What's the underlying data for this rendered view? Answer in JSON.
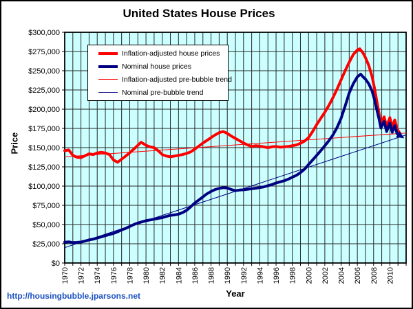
{
  "page": {
    "background": "#ffffff",
    "frame_border": "#000000"
  },
  "chart": {
    "title": "United States House Prices",
    "source_link": "http://housingbubble.jparsons.net",
    "colors": {
      "plot_bg": "#CCFFFF",
      "gridline": "#262626",
      "axis": "#000000",
      "inflation_adjusted": "#FF0000",
      "nominal": "#000082",
      "link": "#1a50c0",
      "text": "#000000"
    },
    "y_axis": {
      "label": "Price",
      "min": 0,
      "max": 300000,
      "step": 25000,
      "tick_labels": [
        "$0",
        "$25,000",
        "$50,000",
        "$75,000",
        "$100,000",
        "$125,000",
        "$150,000",
        "$175,000",
        "$200,000",
        "$225,000",
        "$250,000",
        "$275,000",
        "$300,000"
      ]
    },
    "x_axis": {
      "label": "Year",
      "min": 1970,
      "max": 2012,
      "grid_step_years": 1,
      "tick_years": [
        1970,
        1972,
        1974,
        1976,
        1978,
        1980,
        1982,
        1984,
        1986,
        1988,
        1990,
        1992,
        1994,
        1996,
        1998,
        2000,
        2002,
        2004,
        2006,
        2008,
        2010
      ],
      "tick_labels": [
        "1970",
        "1972",
        "1974",
        "1976",
        "1978",
        "1980",
        "1982",
        "1984",
        "1986",
        "1988",
        "1990",
        "1992",
        "1994",
        "1996",
        "1998",
        "2000",
        "2002",
        "2004",
        "2006",
        "2008",
        "2010"
      ]
    },
    "legend": {
      "items": [
        {
          "label": "Inflation-adjusted house prices",
          "color": "#FF0000",
          "weight": "thick"
        },
        {
          "label": "Nominal house prices",
          "color": "#000082",
          "weight": "thick"
        },
        {
          "label": "Inflation-adjusted pre-bubble trend",
          "color": "#FF0000",
          "weight": "thin"
        },
        {
          "label": "Nominal pre-bubble trend",
          "color": "#000082",
          "weight": "thin"
        }
      ]
    }
  },
  "chart_data": {
    "type": "line",
    "title": "United States House Prices",
    "xlabel": "Year",
    "ylabel": "Price",
    "xlim": [
      1970,
      2012
    ],
    "ylim": [
      0,
      300000
    ],
    "grid": true,
    "legend_position": "upper-left-inside",
    "series": [
      {
        "name": "Inflation-adjusted house prices",
        "color": "#FF0000",
        "width": 4,
        "points": [
          [
            1970,
            146000
          ],
          [
            1970.5,
            147000
          ],
          [
            1971,
            140000
          ],
          [
            1971.5,
            137500
          ],
          [
            1972,
            137000
          ],
          [
            1972.5,
            139500
          ],
          [
            1973,
            142000
          ],
          [
            1973.5,
            141000
          ],
          [
            1974,
            143000
          ],
          [
            1974.5,
            144000
          ],
          [
            1975,
            143000
          ],
          [
            1975.5,
            141000
          ],
          [
            1976,
            134000
          ],
          [
            1976.5,
            131000
          ],
          [
            1977,
            135000
          ],
          [
            1977.5,
            139000
          ],
          [
            1978,
            143500
          ],
          [
            1978.5,
            148000
          ],
          [
            1979,
            153000
          ],
          [
            1979.4,
            157000
          ],
          [
            1980,
            153000
          ],
          [
            1980.5,
            151000
          ],
          [
            1981,
            150000
          ],
          [
            1981.5,
            146000
          ],
          [
            1982,
            141000
          ],
          [
            1982.5,
            139000
          ],
          [
            1983,
            138000
          ],
          [
            1983.5,
            139000
          ],
          [
            1984,
            140000
          ],
          [
            1984.5,
            141000
          ],
          [
            1985,
            142500
          ],
          [
            1985.5,
            144500
          ],
          [
            1986,
            148000
          ],
          [
            1986.5,
            152000
          ],
          [
            1987,
            156000
          ],
          [
            1987.5,
            159500
          ],
          [
            1988,
            163000
          ],
          [
            1988.5,
            166500
          ],
          [
            1989,
            169500
          ],
          [
            1989.5,
            171000
          ],
          [
            1990,
            168500
          ],
          [
            1990.5,
            165000
          ],
          [
            1991,
            162000
          ],
          [
            1991.5,
            159000
          ],
          [
            1992,
            156000
          ],
          [
            1992.5,
            153500
          ],
          [
            1993,
            151500
          ],
          [
            1993.5,
            152500
          ],
          [
            1994,
            152000
          ],
          [
            1994.5,
            151000
          ],
          [
            1995,
            150000
          ],
          [
            1995.5,
            151000
          ],
          [
            1996,
            151500
          ],
          [
            1996.5,
            150500
          ],
          [
            1997,
            151000
          ],
          [
            1997.5,
            151500
          ],
          [
            1998,
            152500
          ],
          [
            1998.5,
            153500
          ],
          [
            1999,
            155500
          ],
          [
            1999.5,
            158500
          ],
          [
            2000,
            163000
          ],
          [
            2000.5,
            171000
          ],
          [
            2001,
            180000
          ],
          [
            2001.5,
            188000
          ],
          [
            2002,
            196000
          ],
          [
            2002.5,
            205000
          ],
          [
            2003,
            215000
          ],
          [
            2003.5,
            226000
          ],
          [
            2004,
            238000
          ],
          [
            2004.5,
            250000
          ],
          [
            2005,
            261000
          ],
          [
            2005.5,
            271000
          ],
          [
            2006,
            277000
          ],
          [
            2006.3,
            278500
          ],
          [
            2006.7,
            273000
          ],
          [
            2007,
            267000
          ],
          [
            2007.4,
            257000
          ],
          [
            2007.8,
            243000
          ],
          [
            2008.1,
            228000
          ],
          [
            2008.4,
            210000
          ],
          [
            2008.7,
            193000
          ],
          [
            2008.9,
            181000
          ],
          [
            2009.3,
            190000
          ],
          [
            2009.6,
            177500
          ],
          [
            2010,
            189000
          ],
          [
            2010.3,
            176500
          ],
          [
            2010.6,
            186000
          ],
          [
            2010.9,
            174000
          ],
          [
            2011.2,
            169000
          ]
        ]
      },
      {
        "name": "Nominal house prices",
        "color": "#000082",
        "width": 4,
        "end_marker": "arrow",
        "points": [
          [
            1970,
            27000
          ],
          [
            1970.5,
            27500
          ],
          [
            1971,
            26500
          ],
          [
            1971.5,
            26800
          ],
          [
            1972,
            27200
          ],
          [
            1972.5,
            28500
          ],
          [
            1973,
            30000
          ],
          [
            1973.5,
            31000
          ],
          [
            1974,
            32500
          ],
          [
            1974.5,
            34000
          ],
          [
            1975,
            35500
          ],
          [
            1975.5,
            37000
          ],
          [
            1976,
            38500
          ],
          [
            1976.5,
            40500
          ],
          [
            1977,
            43000
          ],
          [
            1977.5,
            45000
          ],
          [
            1978,
            47500
          ],
          [
            1978.5,
            50000
          ],
          [
            1979,
            52000
          ],
          [
            1979.5,
            53500
          ],
          [
            1980,
            55000
          ],
          [
            1980.5,
            56000
          ],
          [
            1981,
            57000
          ],
          [
            1981.5,
            58000
          ],
          [
            1982,
            59000
          ],
          [
            1982.5,
            60500
          ],
          [
            1983,
            62000
          ],
          [
            1983.5,
            62500
          ],
          [
            1984,
            63500
          ],
          [
            1984.5,
            65500
          ],
          [
            1985,
            68500
          ],
          [
            1985.5,
            73000
          ],
          [
            1986,
            78000
          ],
          [
            1986.5,
            82000
          ],
          [
            1987,
            86000
          ],
          [
            1987.5,
            90000
          ],
          [
            1988,
            93000
          ],
          [
            1988.5,
            95500
          ],
          [
            1989,
            97000
          ],
          [
            1989.5,
            98000
          ],
          [
            1990,
            97500
          ],
          [
            1990.5,
            95500
          ],
          [
            1991,
            94000
          ],
          [
            1991.5,
            94800
          ],
          [
            1992,
            95200
          ],
          [
            1992.5,
            95800
          ],
          [
            1993,
            96500
          ],
          [
            1993.5,
            97200
          ],
          [
            1994,
            98000
          ],
          [
            1994.5,
            99000
          ],
          [
            1995,
            100500
          ],
          [
            1995.5,
            102000
          ],
          [
            1996,
            104000
          ],
          [
            1996.5,
            105500
          ],
          [
            1997,
            107000
          ],
          [
            1997.5,
            109000
          ],
          [
            1998,
            111500
          ],
          [
            1998.5,
            114000
          ],
          [
            1999,
            117500
          ],
          [
            1999.5,
            122000
          ],
          [
            2000,
            128000
          ],
          [
            2000.5,
            134000
          ],
          [
            2001,
            140000
          ],
          [
            2001.5,
            146000
          ],
          [
            2002,
            152500
          ],
          [
            2002.5,
            159000
          ],
          [
            2003,
            166500
          ],
          [
            2003.5,
            176000
          ],
          [
            2004,
            188000
          ],
          [
            2004.5,
            204000
          ],
          [
            2005,
            221000
          ],
          [
            2005.5,
            233000
          ],
          [
            2006,
            242000
          ],
          [
            2006.4,
            245500
          ],
          [
            2006.8,
            241000
          ],
          [
            2007,
            239000
          ],
          [
            2007.4,
            233000
          ],
          [
            2007.8,
            224000
          ],
          [
            2008.1,
            213000
          ],
          [
            2008.4,
            199000
          ],
          [
            2008.7,
            186000
          ],
          [
            2008.9,
            175500
          ],
          [
            2009.3,
            184000
          ],
          [
            2009.6,
            171000
          ],
          [
            2010,
            182000
          ],
          [
            2010.3,
            170000
          ],
          [
            2010.6,
            178500
          ],
          [
            2010.9,
            168000
          ],
          [
            2011.2,
            166000
          ]
        ]
      },
      {
        "name": "Inflation-adjusted pre-bubble trend",
        "color": "#FF0000",
        "width": 1,
        "points": [
          [
            1970,
            138000
          ],
          [
            2012,
            169000
          ]
        ]
      },
      {
        "name": "Nominal pre-bubble trend",
        "color": "#000082",
        "width": 1,
        "points": [
          [
            1970,
            20000
          ],
          [
            2012,
            166500
          ]
        ]
      }
    ]
  }
}
